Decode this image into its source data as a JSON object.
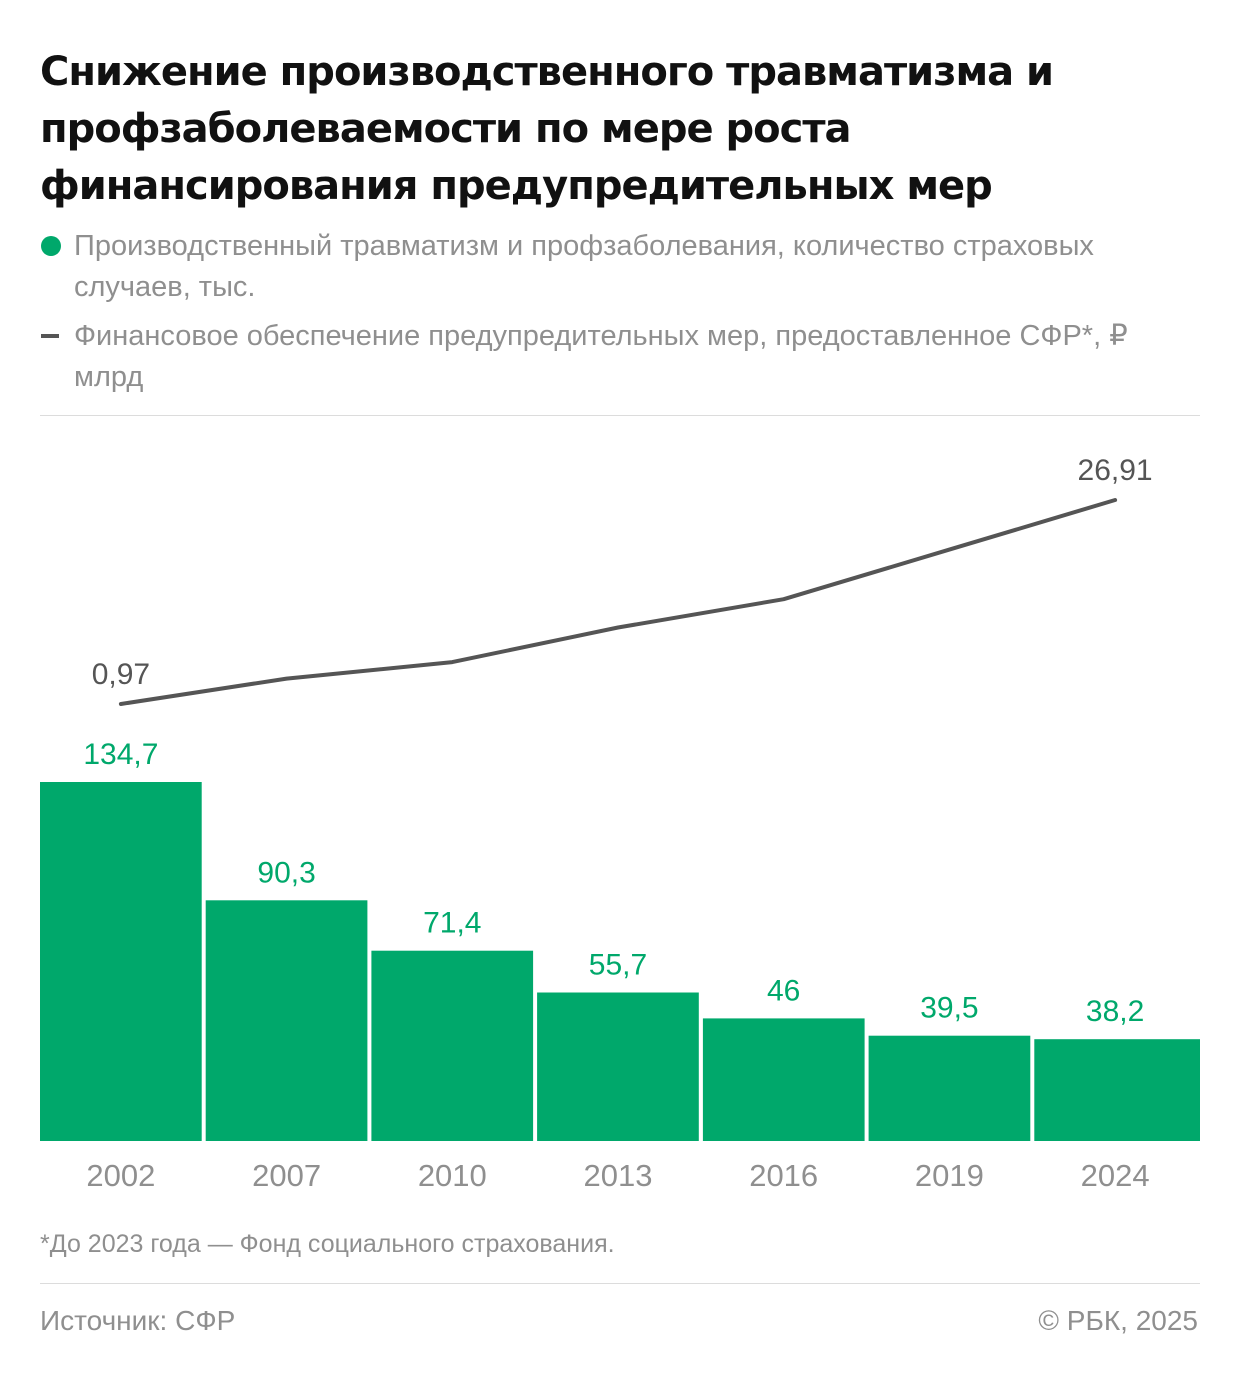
{
  "header": {
    "title": "Снижение производственного травматизма и профзаболеваемости по мере роста финансирования предупредительных мер"
  },
  "legend": {
    "bars_label": "Производственный травматизм и профзаболевания, количество страховых случаев, тыс.",
    "line_label": "Финансовое обеспечение предупредительных мер, предоставленное СФР*, ₽ млрд"
  },
  "footer": {
    "footnote": "*До 2023 года — Фонд социального страхования.",
    "source": "Источник: СФР",
    "copyright": "© РБК, 2025"
  },
  "colors": {
    "bar": "#00a86b",
    "line": "#555555",
    "muted_text": "#8f8f8f"
  },
  "chart_data": {
    "type": "bar",
    "categories": [
      "2002",
      "2007",
      "2010",
      "2013",
      "2016",
      "2019",
      "2024"
    ],
    "series": [
      {
        "name": "Производственный травматизм и профзаболевания, количество страховых случаев, тыс.",
        "type": "bar",
        "values": [
          134.7,
          90.3,
          71.4,
          55.7,
          46,
          39.5,
          38.2
        ],
        "value_labels": [
          "134,7",
          "90,3",
          "71,4",
          "55,7",
          "46",
          "39,5",
          "38,2"
        ]
      },
      {
        "name": "Финансовое обеспечение предупредительных мер, предоставленное СФР*, ₽ млрд",
        "type": "line",
        "values": [
          0.97,
          4.2,
          6.3,
          10.7,
          14.3,
          20.6,
          26.91
        ],
        "labeled_points": {
          "0": "0,97",
          "6": "26,91"
        }
      }
    ],
    "bar_ylim": [
      0,
      134.7
    ],
    "line_ylim": [
      0.97,
      26.91
    ],
    "legend": "top-left",
    "grid": false
  }
}
